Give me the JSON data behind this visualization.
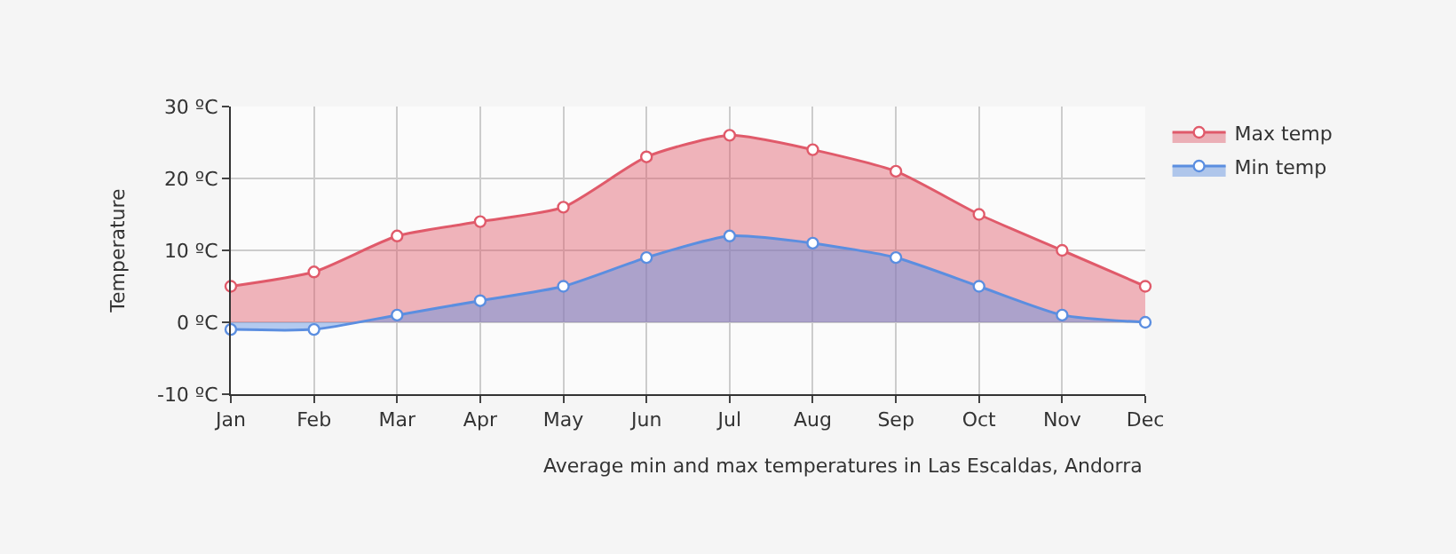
{
  "chart_data": {
    "type": "area",
    "ylabel": "Temperature",
    "categories": [
      "Jan",
      "Feb",
      "Mar",
      "Apr",
      "May",
      "Jun",
      "Jul",
      "Aug",
      "Sep",
      "Oct",
      "Nov",
      "Dec"
    ],
    "series": [
      {
        "name": "Max temp",
        "color": "#e05a6a",
        "values": [
          5,
          7,
          12,
          14,
          16,
          23,
          26,
          24,
          21,
          15,
          10,
          5
        ]
      },
      {
        "name": "Min temp",
        "color": "#5b8ee0",
        "values": [
          -1,
          -1,
          1,
          3,
          5,
          9,
          12,
          11,
          9,
          5,
          1,
          0
        ]
      }
    ],
    "ylim": [
      -10,
      30
    ],
    "yticks": [
      {
        "value": -10,
        "label": "-10 ºC"
      },
      {
        "value": 0,
        "label": "0 ºC"
      },
      {
        "value": 10,
        "label": "10 ºC"
      },
      {
        "value": 20,
        "label": "20 ºC"
      },
      {
        "value": 30,
        "label": "30 ºC"
      }
    ],
    "grid": true,
    "legend": "top right",
    "marker": "circle",
    "line_style": "solid",
    "annotations": [
      "Average min and max temperatures in Las Escaldas, Andorra"
    ]
  }
}
